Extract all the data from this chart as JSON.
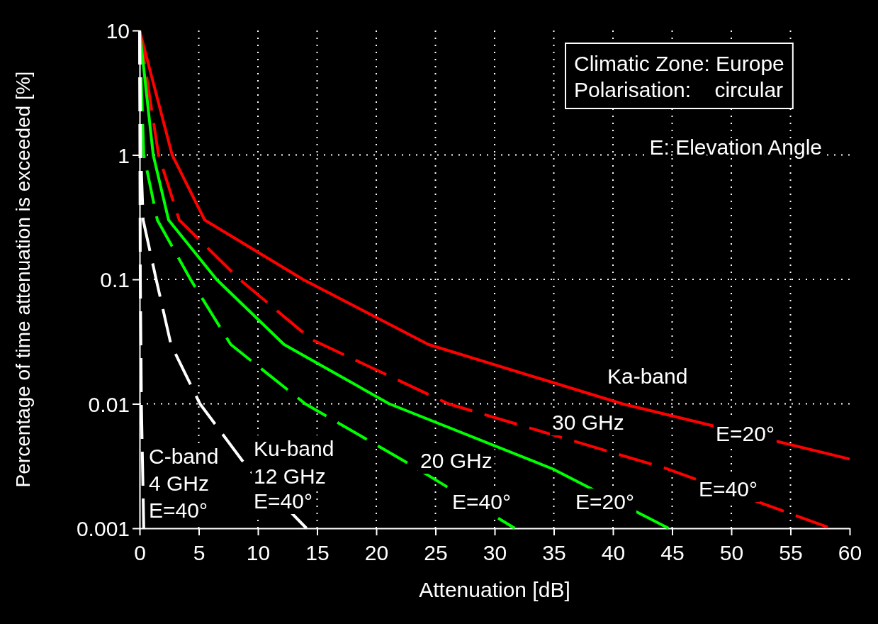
{
  "chart_data": {
    "type": "line",
    "xlabel": "Attenuation [dB]",
    "ylabel": "Percentage of time attenuation is exceeded [%]",
    "log": "y",
    "xlim": [
      0,
      60
    ],
    "ylim": [
      0.001,
      10
    ],
    "xticks": [
      0,
      5,
      10,
      15,
      20,
      25,
      30,
      35,
      40,
      45,
      50,
      55,
      60
    ],
    "yticks": [
      0.001,
      0.01,
      0.1,
      1,
      10
    ],
    "grid": true,
    "marker": "none",
    "series": [
      {
        "color": "#ff0000",
        "line_style": "solid",
        "x": [
          0,
          2.75,
          5.5,
          13.8,
          24.4,
          40.8,
          60
        ],
        "values": [
          10,
          1,
          0.3,
          0.1,
          0.03,
          0.01,
          0.0036
        ]
      },
      {
        "color": "#ff0000",
        "line_style": "dashed",
        "x": [
          0,
          1.6,
          3.35,
          8.45,
          14.5,
          26.1,
          44.6,
          58.4
        ],
        "values": [
          10,
          1,
          0.3,
          0.1,
          0.033,
          0.01,
          0.003,
          0.001
        ]
      },
      {
        "color": "#00ff00",
        "line_style": "solid",
        "x": [
          0,
          1.15,
          2.45,
          6.5,
          12.2,
          21.1,
          34.9,
          44.7
        ],
        "values": [
          10,
          1,
          0.3,
          0.1,
          0.03,
          0.01,
          0.003,
          0.001
        ]
      },
      {
        "color": "#00ff00",
        "line_style": "dashed",
        "x": [
          0,
          0.35,
          1.5,
          4.3,
          7.7,
          14,
          23.5,
          31.7
        ],
        "values": [
          10,
          1,
          0.3,
          0.1,
          0.03,
          0.01,
          0.003,
          0.001
        ]
      },
      {
        "color": "#ffffff",
        "line_style": "dashed",
        "x": [
          0,
          0.1,
          0.3,
          1.4,
          2.65,
          5.1,
          9.2,
          14.1
        ],
        "values": [
          10,
          1,
          0.3,
          0.1,
          0.03,
          0.01,
          0.003,
          0.001
        ]
      },
      {
        "color": "#ffffff",
        "line_style": "dashed",
        "x": [
          0,
          0.03,
          0.06,
          0.15,
          0.35
        ],
        "values": [
          10,
          1,
          0.1,
          0.01,
          0.001
        ]
      }
    ],
    "annotations": [
      "Climatic Zone: Europe",
      "Polarisation:    circular",
      "E: Elevation Angle",
      "Ka-band",
      "30 GHz",
      "E=20°",
      "E=40°",
      "20 GHz",
      "E=40°",
      "E=20°",
      "Ku-band",
      "12 GHz",
      "E=40°",
      "C-band",
      "4 GHz",
      "E=40°"
    ]
  }
}
